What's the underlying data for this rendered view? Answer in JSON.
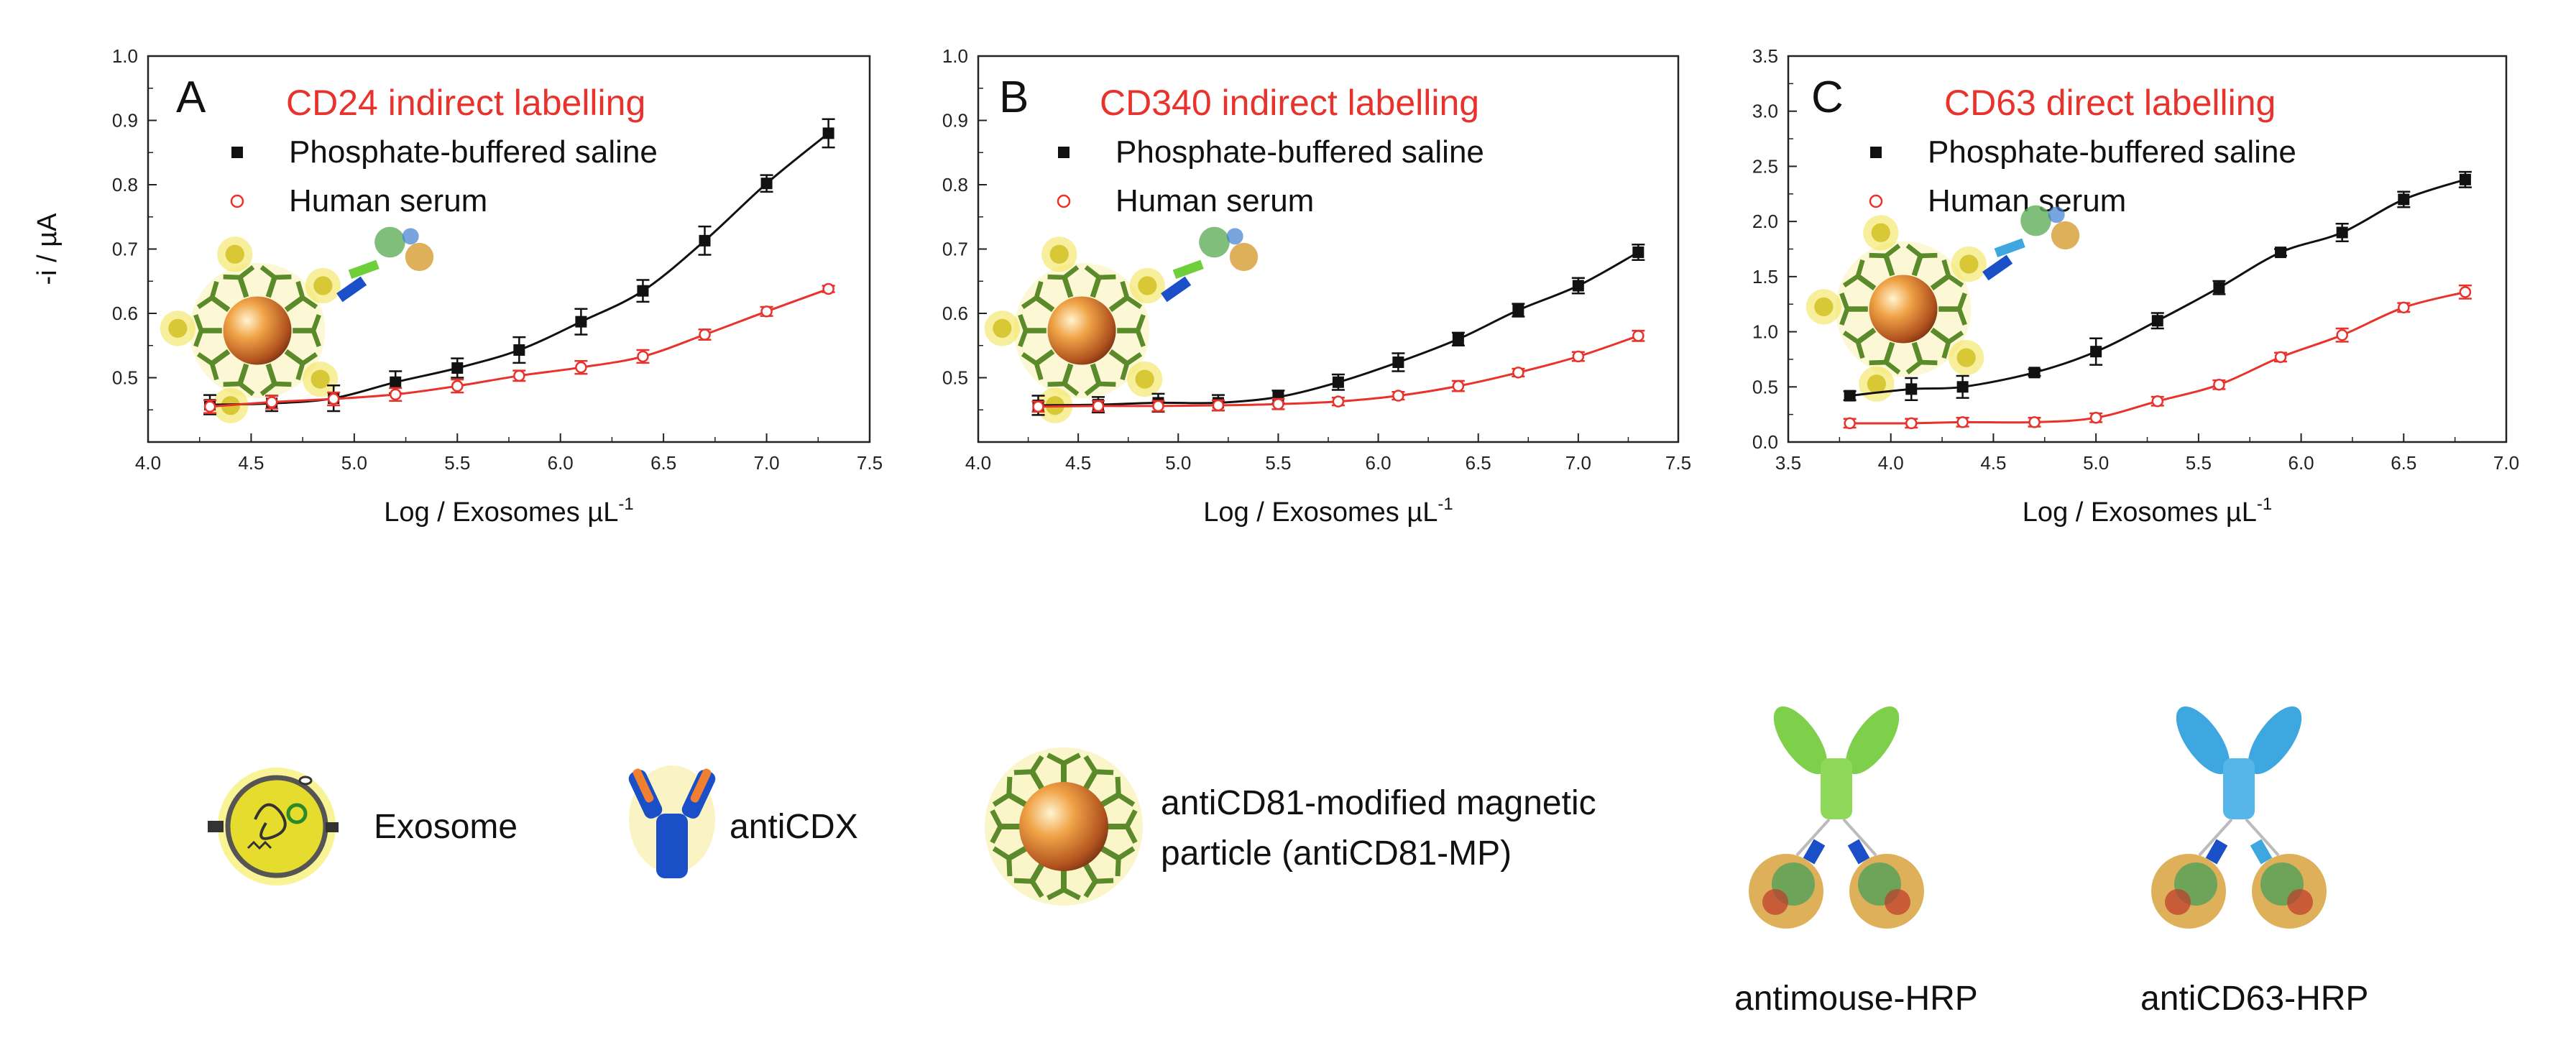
{
  "colors": {
    "pbs": "#111111",
    "serum": "#e8322b",
    "panel_title": "#e8322b"
  },
  "chart_data": [
    {
      "type": "line",
      "panel_letter": "A",
      "title": "CD24 indirect labelling",
      "xlabel": "Log / Exosomes µL",
      "xlabel_sup": "-1",
      "ylabel": "-i / µA",
      "xlim": [
        4.0,
        7.5
      ],
      "ylim": [
        0.4,
        1.0
      ],
      "xticks": [
        "4.0",
        "4.5",
        "5.0",
        "5.5",
        "6.0",
        "6.5",
        "7.0",
        "7.5"
      ],
      "yticks": [
        "0.5",
        "0.6",
        "0.7",
        "0.8",
        "0.9",
        "1.0"
      ],
      "series": [
        {
          "name": "Phosphate-buffered saline",
          "marker": "filled-square",
          "x": [
            4.3,
            4.6,
            4.9,
            5.2,
            5.5,
            5.8,
            6.1,
            6.4,
            6.7,
            7.0,
            7.3
          ],
          "values": [
            0.458,
            0.46,
            0.468,
            0.493,
            0.515,
            0.543,
            0.587,
            0.635,
            0.713,
            0.802,
            0.88
          ],
          "err": [
            0.015,
            0.012,
            0.02,
            0.017,
            0.015,
            0.02,
            0.02,
            0.017,
            0.022,
            0.013,
            0.022
          ]
        },
        {
          "name": "Human serum",
          "marker": "open-circle",
          "x": [
            4.3,
            4.6,
            4.9,
            5.2,
            5.5,
            5.8,
            6.1,
            6.4,
            6.7,
            7.0,
            7.3
          ],
          "values": [
            0.455,
            0.462,
            0.467,
            0.474,
            0.487,
            0.503,
            0.516,
            0.533,
            0.567,
            0.603,
            0.638
          ],
          "err": [
            0.01,
            0.01,
            0.01,
            0.01,
            0.01,
            0.008,
            0.01,
            0.01,
            0.008,
            0.007,
            0.005
          ]
        }
      ]
    },
    {
      "type": "line",
      "panel_letter": "B",
      "title": "CD340 indirect labelling",
      "xlabel": "Log / Exosomes µL",
      "xlabel_sup": "-1",
      "xlim": [
        4.0,
        7.5
      ],
      "ylim": [
        0.4,
        1.0
      ],
      "xticks": [
        "4.0",
        "4.5",
        "5.0",
        "5.5",
        "6.0",
        "6.5",
        "7.0",
        "7.5"
      ],
      "yticks": [
        "0.5",
        "0.6",
        "0.7",
        "0.8",
        "0.9",
        "1.0"
      ],
      "series": [
        {
          "name": "Phosphate-buffered saline",
          "marker": "filled-square",
          "x": [
            4.3,
            4.6,
            4.9,
            5.2,
            5.5,
            5.8,
            6.1,
            6.4,
            6.7,
            7.0,
            7.3
          ],
          "values": [
            0.457,
            0.458,
            0.461,
            0.461,
            0.47,
            0.493,
            0.524,
            0.56,
            0.605,
            0.643,
            0.695
          ],
          "err": [
            0.015,
            0.012,
            0.014,
            0.012,
            0.01,
            0.012,
            0.014,
            0.01,
            0.01,
            0.012,
            0.012
          ]
        },
        {
          "name": "Human serum",
          "marker": "open-circle",
          "x": [
            4.3,
            4.6,
            4.9,
            5.2,
            5.5,
            5.8,
            6.1,
            6.4,
            6.7,
            7.0,
            7.3
          ],
          "values": [
            0.455,
            0.456,
            0.456,
            0.457,
            0.459,
            0.463,
            0.472,
            0.487,
            0.508,
            0.533,
            0.565
          ],
          "err": [
            0.008,
            0.008,
            0.008,
            0.008,
            0.008,
            0.006,
            0.006,
            0.008,
            0.006,
            0.007,
            0.008
          ]
        }
      ]
    },
    {
      "type": "line",
      "panel_letter": "C",
      "title": "CD63 direct labelling",
      "xlabel": "Log / Exosomes µL",
      "xlabel_sup": "-1",
      "xlim": [
        3.5,
        7.0
      ],
      "ylim": [
        0.0,
        3.5
      ],
      "xticks": [
        "3.5",
        "4.0",
        "4.5",
        "5.0",
        "5.5",
        "6.0",
        "6.5",
        "7.0"
      ],
      "yticks": [
        "0.0",
        "0.5",
        "1.0",
        "1.5",
        "2.0",
        "2.5",
        "3.0",
        "3.5"
      ],
      "series": [
        {
          "name": "Phosphate-buffered saline",
          "marker": "filled-square",
          "x": [
            3.8,
            4.1,
            4.35,
            4.7,
            5.0,
            5.3,
            5.6,
            5.9,
            6.2,
            6.5,
            6.8
          ],
          "values": [
            0.42,
            0.48,
            0.5,
            0.63,
            0.82,
            1.1,
            1.4,
            1.72,
            1.9,
            2.2,
            2.38
          ],
          "err": [
            0.04,
            0.1,
            0.1,
            0.03,
            0.12,
            0.07,
            0.06,
            0.03,
            0.08,
            0.07,
            0.07
          ]
        },
        {
          "name": "Human serum",
          "marker": "open-circle",
          "x": [
            3.8,
            4.1,
            4.35,
            4.7,
            5.0,
            5.3,
            5.6,
            5.9,
            6.2,
            6.5,
            6.8
          ],
          "values": [
            0.17,
            0.17,
            0.18,
            0.18,
            0.22,
            0.37,
            0.52,
            0.77,
            0.97,
            1.22,
            1.36
          ],
          "err": [
            0.04,
            0.04,
            0.04,
            0.04,
            0.04,
            0.04,
            0.04,
            0.04,
            0.06,
            0.04,
            0.06
          ]
        }
      ]
    }
  ],
  "legend_items": [
    {
      "label": "Exosome"
    },
    {
      "label": "antiCDX"
    },
    {
      "label_line1": "antiCD81-modified magnetic",
      "label_line2": "particle (antiCD81-MP)"
    },
    {
      "label": "antimouse-HRP"
    },
    {
      "label": "antiCD63-HRP"
    }
  ]
}
